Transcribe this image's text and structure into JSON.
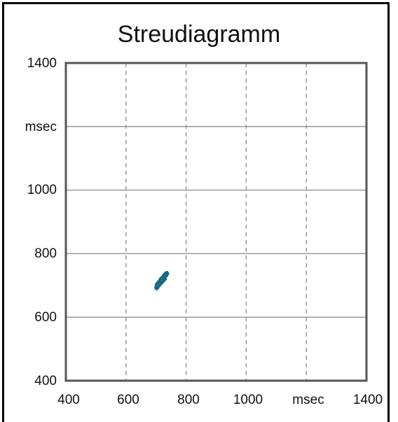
{
  "chart_data": {
    "type": "scatter",
    "title": "Streudiagramm",
    "xlabel": "msec",
    "ylabel": "msec",
    "xlim": [
      400,
      1400
    ],
    "ylim": [
      400,
      1400
    ],
    "x_ticks": [
      "400",
      "600",
      "800",
      "1000",
      "msec",
      "1400"
    ],
    "y_ticks": [
      "1400",
      "msec",
      "1000",
      "800",
      "600",
      "400"
    ],
    "grid": {
      "vertical": "dashed",
      "horizontal": "solid"
    },
    "marker_color": "#1a6b80",
    "series": [
      {
        "points": [
          [
            700,
            693
          ],
          [
            703,
            697
          ],
          [
            705,
            700
          ],
          [
            707,
            702
          ],
          [
            709,
            705
          ],
          [
            711,
            707
          ],
          [
            713,
            709
          ],
          [
            715,
            712
          ],
          [
            717,
            714
          ],
          [
            719,
            716
          ],
          [
            721,
            719
          ],
          [
            723,
            721
          ],
          [
            725,
            724
          ],
          [
            727,
            726
          ],
          [
            729,
            728
          ],
          [
            731,
            731
          ],
          [
            733,
            733
          ],
          [
            735,
            735
          ],
          [
            704,
            706
          ],
          [
            708,
            710
          ],
          [
            712,
            714
          ],
          [
            716,
            718
          ],
          [
            720,
            722
          ],
          [
            724,
            726
          ],
          [
            728,
            730
          ],
          [
            710,
            700
          ],
          [
            714,
            704
          ],
          [
            718,
            708
          ],
          [
            722,
            712
          ],
          [
            726,
            716
          ],
          [
            730,
            720
          ],
          [
            702,
            690
          ],
          [
            706,
            694
          ],
          [
            732,
            738
          ],
          [
            736,
            740
          ],
          [
            715,
            720
          ],
          [
            719,
            724
          ],
          [
            723,
            717
          ],
          [
            711,
            713
          ],
          [
            707,
            698
          ],
          [
            734,
            730
          ],
          [
            738,
            737
          ],
          [
            701,
            701
          ],
          [
            729,
            735
          ],
          [
            725,
            731
          ]
        ]
      }
    ]
  }
}
